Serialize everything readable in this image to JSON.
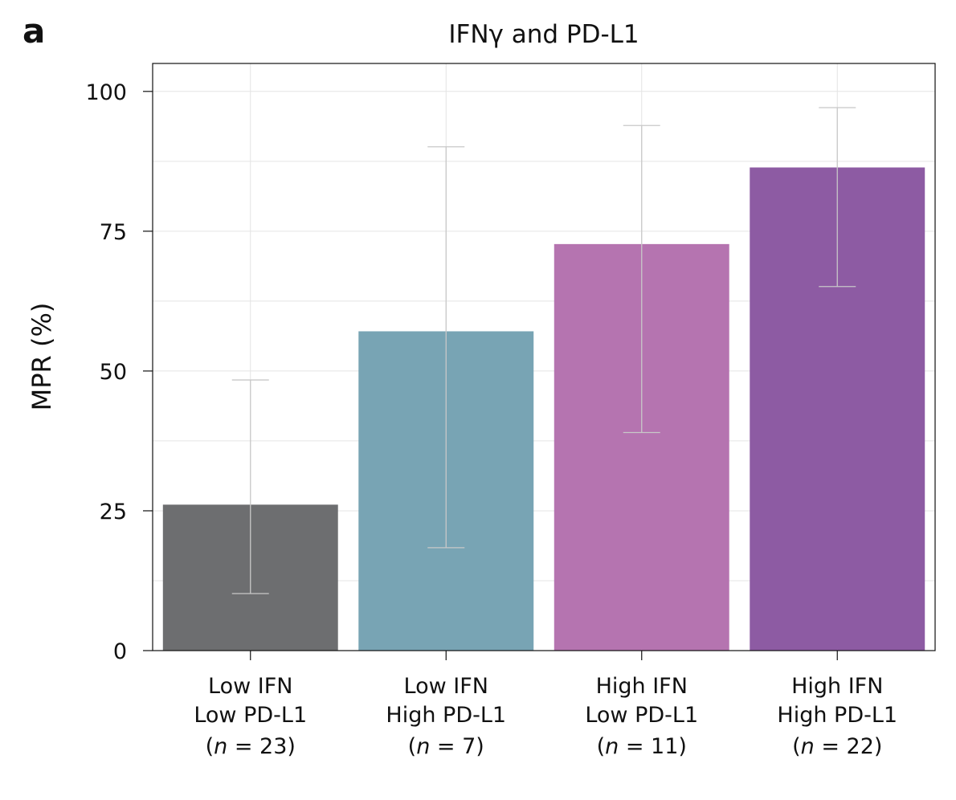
{
  "panel_label": "a",
  "chart_data": {
    "type": "bar",
    "title": "IFNγ and PD-L1",
    "xlabel": "",
    "ylabel": "MPR (%)",
    "ylim": [
      0,
      105
    ],
    "yticks": [
      0,
      25,
      50,
      75,
      100
    ],
    "grid": true,
    "categories": [
      {
        "line1": "Low IFN",
        "line2": "Low PD-L1",
        "n_prefix": "(",
        "n_var": "n",
        "n_suffix": " = 23)"
      },
      {
        "line1": "Low IFN",
        "line2": "High PD-L1",
        "n_prefix": "(",
        "n_var": "n",
        "n_suffix": " = 7)"
      },
      {
        "line1": "High IFN",
        "line2": "Low PD-L1",
        "n_prefix": "(",
        "n_var": "n",
        "n_suffix": " = 11)"
      },
      {
        "line1": "High IFN",
        "line2": "High PD-L1",
        "n_prefix": "(",
        "n_var": "n",
        "n_suffix": " = 22)"
      }
    ],
    "values": [
      26.1,
      57.1,
      72.7,
      86.4
    ],
    "error_low": [
      10.2,
      18.4,
      39.0,
      65.1
    ],
    "error_high": [
      48.4,
      90.1,
      93.9,
      97.1
    ],
    "colors": [
      "#6d6e70",
      "#78a4b4",
      "#b574b0",
      "#8d5ba3"
    ],
    "error_color": "#c8c8c8",
    "grid_color": "#e4e4e4"
  }
}
